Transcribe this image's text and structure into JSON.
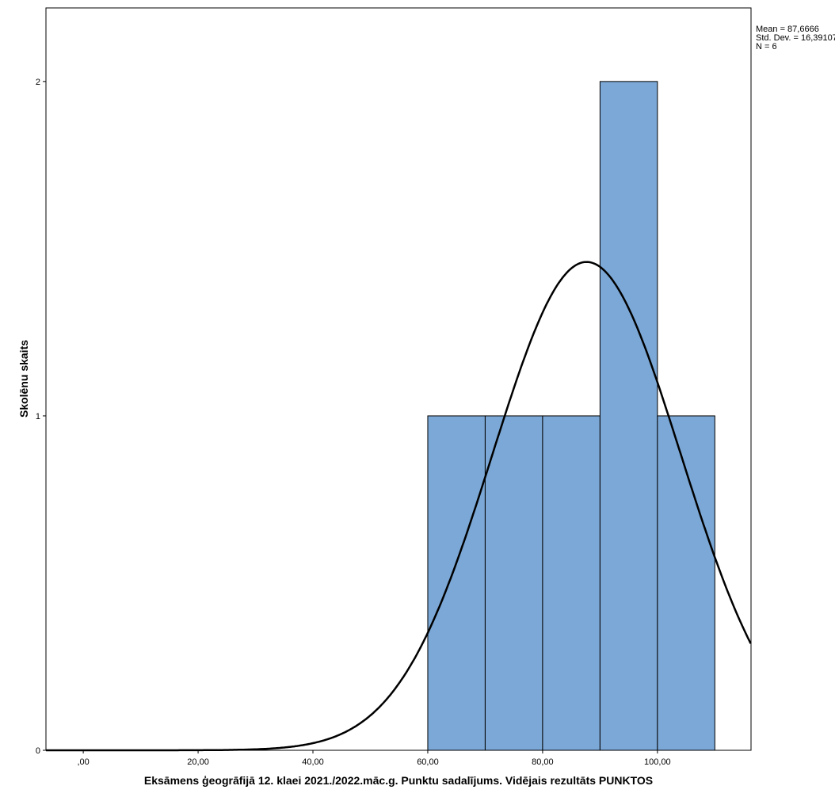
{
  "chart_data": {
    "type": "bar",
    "subtype": "histogram",
    "xlabel": "Eksāmens ģeogrāfijā 12. klaei 2021./2022.māc.g. Punktu sadalījums. Vidējais rezultāts PUNKTOS",
    "ylabel": "Skolēnu skaits",
    "xlim": [
      -6.5,
      116.3
    ],
    "ylim": [
      0,
      2.22
    ],
    "x_ticks": [
      0,
      20,
      40,
      60,
      80,
      100
    ],
    "x_tick_labels": [
      ",00",
      "20,00",
      "40,00",
      "60,00",
      "80,00",
      "100,00"
    ],
    "y_ticks": [
      0,
      1,
      2
    ],
    "y_tick_labels": [
      "0",
      "1",
      "2"
    ],
    "bins": [
      {
        "from": 60,
        "to": 70,
        "count": 1
      },
      {
        "from": 70,
        "to": 80,
        "count": 1
      },
      {
        "from": 80,
        "to": 90,
        "count": 1
      },
      {
        "from": 90,
        "to": 100,
        "count": 2
      },
      {
        "from": 100,
        "to": 110,
        "count": 1
      }
    ],
    "normal_curve": {
      "mean": 87.6666,
      "std": 16.39107,
      "n": 6,
      "bin_width": 10
    },
    "stats_labels": [
      "Mean = 87,6666",
      "Std. Dev. = 16,39107",
      "N = 6"
    ],
    "bar_color": "#7ba8d6",
    "grid": false,
    "legend_position": "top-right"
  }
}
